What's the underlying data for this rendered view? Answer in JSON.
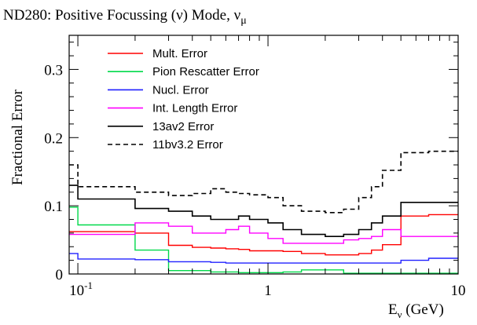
{
  "chart_data": {
    "type": "line",
    "title": {
      "main": "ND280: Positive Focussing (ν) Mode, ν",
      "sub": "μ"
    },
    "xlabel": {
      "main": "E",
      "sub": "ν",
      "tail": " (GeV)"
    },
    "ylabel": "Fractional Error",
    "x_scale": "log",
    "xlim": [
      0.09,
      10
    ],
    "ylim": [
      0,
      0.35
    ],
    "x_ticks": [
      {
        "value": 0.1,
        "base": "10",
        "exp": "-1"
      },
      {
        "value": 1,
        "base": "1",
        "exp": ""
      },
      {
        "value": 10,
        "base": "10",
        "exp": ""
      }
    ],
    "y_ticks": [
      {
        "value": 0,
        "label": "0"
      },
      {
        "value": 0.1,
        "label": "0.1"
      },
      {
        "value": 0.2,
        "label": "0.2"
      },
      {
        "value": 0.3,
        "label": "0.3"
      }
    ],
    "grid": false,
    "legend_position": "top-left",
    "bin_edges": [
      0.09,
      0.1,
      0.2,
      0.3,
      0.4,
      0.5,
      0.6,
      0.7,
      0.8,
      1.0,
      1.2,
      1.5,
      2.0,
      2.5,
      3.0,
      3.5,
      4.0,
      5.0,
      7.0,
      10.0
    ],
    "series": [
      {
        "name": "Mult. Error",
        "color": "#ff0000",
        "dash": "solid",
        "values": [
          0.062,
          0.062,
          0.06,
          0.042,
          0.039,
          0.038,
          0.037,
          0.036,
          0.034,
          0.034,
          0.033,
          0.03,
          0.028,
          0.028,
          0.03,
          0.035,
          0.043,
          0.085,
          0.087
        ]
      },
      {
        "name": "Pion Rescatter Error",
        "color": "#00d94a",
        "dash": "solid",
        "values": [
          0.098,
          0.072,
          0.035,
          0.005,
          0.005,
          0.003,
          0.003,
          0.002,
          0.002,
          0.002,
          0.003,
          0.006,
          0.006,
          0.001,
          0.001,
          0.001,
          0.001,
          0.001,
          0.001
        ]
      },
      {
        "name": "Nucl. Error",
        "color": "#2020ff",
        "dash": "solid",
        "values": [
          0.03,
          0.022,
          0.021,
          0.018,
          0.018,
          0.017,
          0.016,
          0.016,
          0.016,
          0.016,
          0.016,
          0.016,
          0.016,
          0.016,
          0.016,
          0.016,
          0.016,
          0.02,
          0.023
        ]
      },
      {
        "name": "Int. Length Error",
        "color": "#ff00ff",
        "dash": "solid",
        "values": [
          0.058,
          0.058,
          0.075,
          0.07,
          0.06,
          0.06,
          0.065,
          0.07,
          0.06,
          0.052,
          0.045,
          0.045,
          0.045,
          0.05,
          0.052,
          0.055,
          0.065,
          0.055,
          0.055
        ]
      },
      {
        "name": "13av2 Error",
        "color": "#000000",
        "dash": "solid",
        "values": [
          0.13,
          0.11,
          0.096,
          0.092,
          0.085,
          0.08,
          0.08,
          0.085,
          0.08,
          0.075,
          0.065,
          0.058,
          0.055,
          0.058,
          0.065,
          0.075,
          0.085,
          0.105,
          0.105
        ]
      },
      {
        "name": "11bv3.2 Error",
        "color": "#000000",
        "dash": "dashed",
        "values": [
          0.16,
          0.128,
          0.12,
          0.115,
          0.118,
          0.125,
          0.12,
          0.118,
          0.116,
          0.112,
          0.1,
          0.092,
          0.09,
          0.095,
          0.112,
          0.128,
          0.152,
          0.178,
          0.18
        ]
      }
    ]
  }
}
